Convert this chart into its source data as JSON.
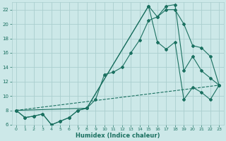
{
  "xlabel": "Humidex (Indice chaleur)",
  "bg_color": "#cce8e8",
  "grid_color": "#aacece",
  "line_color": "#1a7060",
  "xlim": [
    -0.5,
    23.5
  ],
  "ylim": [
    6,
    23
  ],
  "xticks": [
    0,
    1,
    2,
    3,
    4,
    5,
    6,
    7,
    8,
    9,
    10,
    11,
    12,
    13,
    14,
    15,
    16,
    17,
    18,
    19,
    20,
    21,
    22,
    23
  ],
  "yticks": [
    6,
    8,
    10,
    12,
    14,
    16,
    18,
    20,
    22
  ],
  "line1_x": [
    0,
    1,
    2,
    3,
    4,
    5,
    6,
    7,
    8,
    9,
    10,
    11,
    12,
    13,
    14,
    15,
    16,
    17,
    18,
    19,
    20,
    21,
    22,
    23
  ],
  "line1_y": [
    8.0,
    7.0,
    7.2,
    7.5,
    6.0,
    6.5,
    7.0,
    8.0,
    8.3,
    9.5,
    13.0,
    13.3,
    14.0,
    16.0,
    17.8,
    20.5,
    21.0,
    22.0,
    22.0,
    20.0,
    17.0,
    16.7,
    15.5,
    11.5
  ],
  "line2_x": [
    0,
    1,
    2,
    3,
    4,
    5,
    6,
    7,
    8,
    15,
    16,
    17,
    18,
    19,
    20,
    21,
    22,
    23
  ],
  "line2_y": [
    8.0,
    7.0,
    7.2,
    7.5,
    6.0,
    6.5,
    7.0,
    8.0,
    8.3,
    22.5,
    21.0,
    22.5,
    22.7,
    13.5,
    15.5,
    13.5,
    12.5,
    11.5
  ],
  "line3_x": [
    0,
    8,
    15,
    16,
    17,
    18,
    19,
    20,
    21,
    22,
    23
  ],
  "line3_y": [
    8.0,
    8.3,
    22.5,
    17.5,
    16.5,
    17.5,
    9.5,
    11.2,
    10.5,
    9.5,
    11.5
  ],
  "line4_x": [
    0,
    23
  ],
  "line4_y": [
    8.0,
    11.5
  ]
}
